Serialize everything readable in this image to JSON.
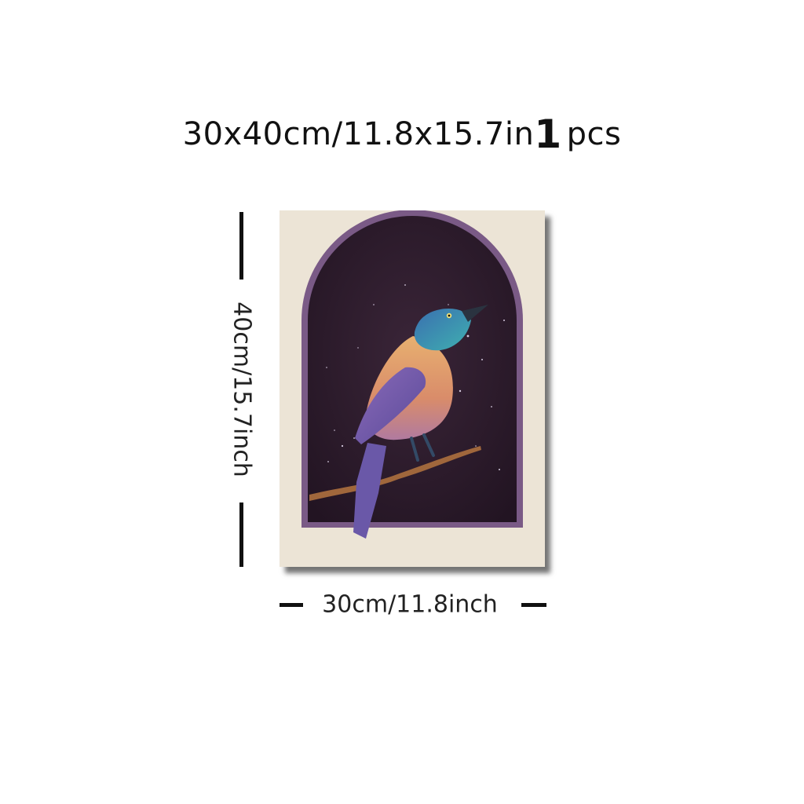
{
  "title": {
    "size_text": "30x40cm/11.8x15.7in",
    "quantity": "1",
    "quantity_unit": "pcs"
  },
  "dimensions": {
    "height_label": "40cm/15.7inch",
    "width_label": "30cm/11.8inch"
  },
  "artwork": {
    "subject": "bird-on-branch",
    "colors": {
      "canvas": "#ece4d6",
      "night_sky": "#2b1a2c",
      "arch_border": "#7a5a86",
      "bird_head": "#2f7fa0",
      "bird_breast": "#e6a36a",
      "bird_wing": "#7b5aa6",
      "branch": "#a0673c"
    }
  }
}
